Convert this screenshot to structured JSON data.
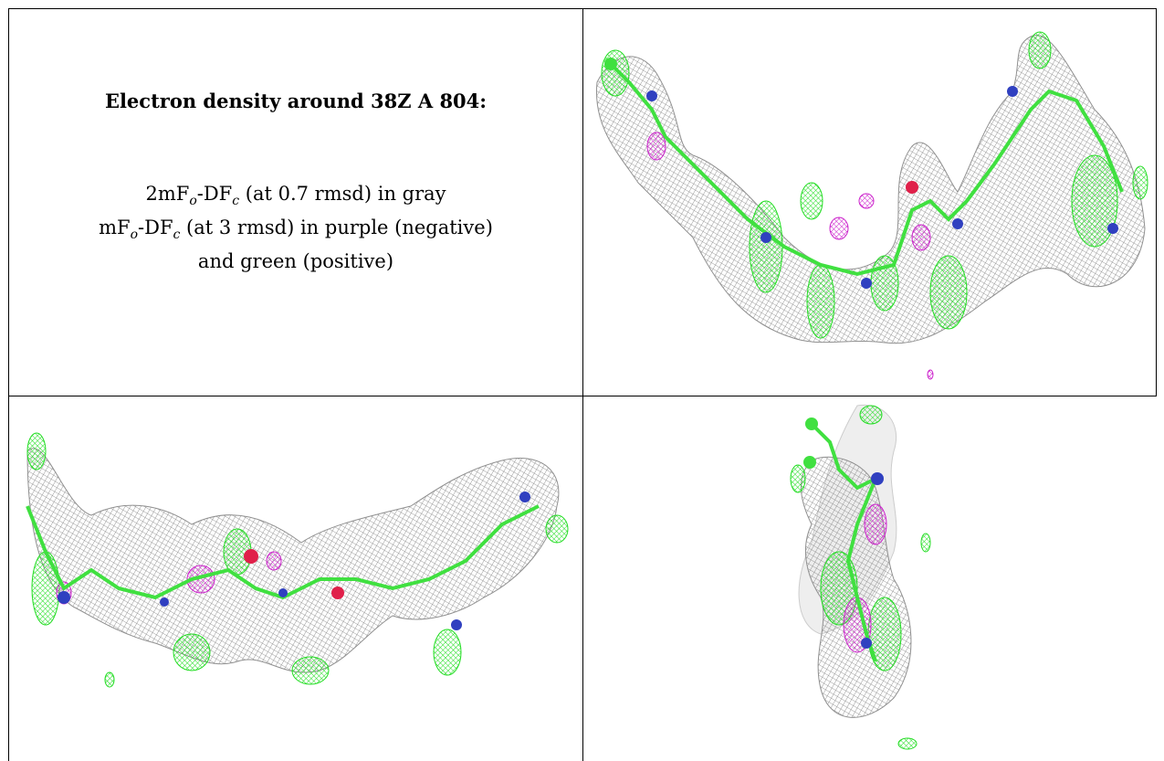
{
  "caption": {
    "title": "Electron density around 38Z A 804:",
    "line1": {
      "prefix": "2mF",
      "sub1": "o",
      "mid": "-DF",
      "sub2": "c",
      "suffix": " (at 0.7 rmsd) in gray"
    },
    "line2": {
      "prefix": "mF",
      "sub1": "o",
      "mid": "-DF",
      "sub2": "c",
      "suffix": " (at 3 rmsd) in purple (negative)"
    },
    "line3": "and green (positive)"
  },
  "colors": {
    "mesh_gray": "#8a8a8a",
    "positive_green": "#2fe02f",
    "negative_purple": "#d020c0",
    "nitrogen_blue": "#3040c0",
    "oxygen_red": "#e0204a",
    "carbon_green": "#40e040"
  },
  "panels": [
    {
      "view": "ligand density view 1"
    },
    {
      "view": "ligand density view 2"
    },
    {
      "view": "ligand density view 3"
    }
  ]
}
